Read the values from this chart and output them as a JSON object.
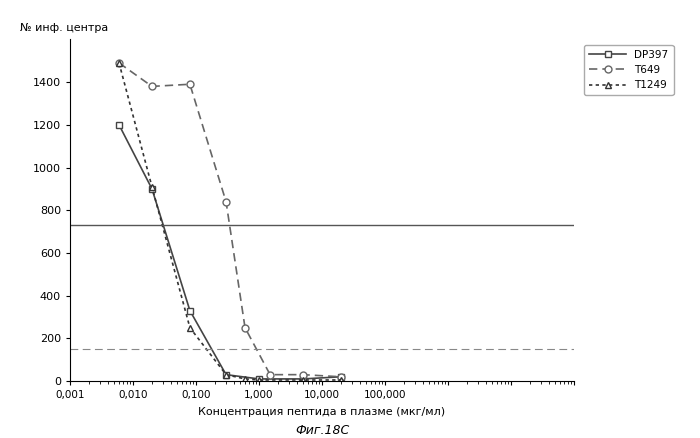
{
  "title_ylabel": "№ инф. центра",
  "xlabel": "Концентрация пептида в плазме (мкг/мл)",
  "caption": "Фиг.18С",
  "hline1_y": 730,
  "hline2_y": 150,
  "DP397": {
    "x": [
      0.006,
      0.02,
      0.08,
      0.3,
      1.0,
      5.0,
      20.0
    ],
    "y": [
      1200,
      900,
      330,
      30,
      10,
      10,
      20
    ],
    "label": "DP397",
    "linestyle": "--",
    "marker": "s",
    "color": "#444444"
  },
  "T649": {
    "x": [
      0.006,
      0.02,
      0.08,
      0.3,
      0.6,
      1.5,
      5.0,
      20.0
    ],
    "y": [
      1490,
      1380,
      1390,
      840,
      250,
      30,
      30,
      20
    ],
    "label": "T649",
    "linestyle": "--",
    "marker": "o",
    "color": "#666666"
  },
  "T1249": {
    "x": [
      0.006,
      0.02,
      0.08,
      0.3,
      0.6,
      1.0,
      5.0,
      20.0
    ],
    "y": [
      1490,
      910,
      250,
      30,
      10,
      5,
      5,
      5
    ],
    "label": "T1249",
    "linestyle": ":",
    "marker": "^",
    "color": "#333333"
  },
  "ylim": [
    0,
    1600
  ],
  "yticks": [
    0,
    200,
    400,
    600,
    800,
    1000,
    1200,
    1400
  ],
  "background_color": "#ffffff",
  "x_ticks": [
    0.001,
    0.01,
    0.1,
    1.0,
    10.0,
    100.0,
    1000.0,
    10000.0,
    100000.0
  ],
  "x_labels": [
    "0,001",
    "0,010",
    "0,100",
    "1,000",
    "10,000",
    "100,000",
    "",
    "",
    ""
  ]
}
